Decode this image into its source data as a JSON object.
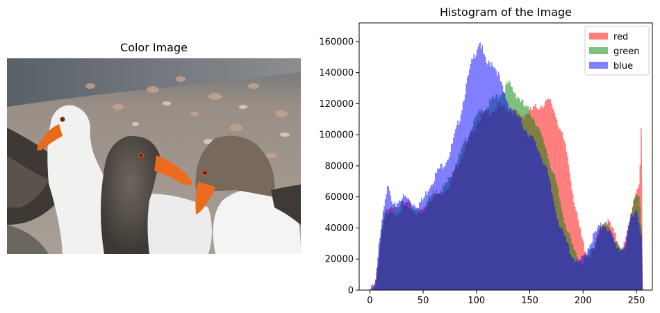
{
  "left_panel": {
    "title": "Color Image"
  },
  "chart_data": {
    "type": "histogram",
    "title": "Histogram of the Image",
    "xlabel": "",
    "ylabel": "",
    "xlim": [
      -10,
      265
    ],
    "ylim": [
      0,
      172000
    ],
    "xticks": [
      0,
      50,
      100,
      150,
      200,
      250
    ],
    "yticks": [
      0,
      20000,
      40000,
      60000,
      80000,
      100000,
      120000,
      140000,
      160000
    ],
    "grid": false,
    "legend_position": "top-right",
    "series": [
      {
        "name": "red",
        "color": "#ff0000",
        "alpha": 0.5,
        "points": [
          [
            0,
            0
          ],
          [
            3,
            1000
          ],
          [
            5,
            3000
          ],
          [
            7,
            12000
          ],
          [
            9,
            25000
          ],
          [
            11,
            38000
          ],
          [
            13,
            45000
          ],
          [
            15,
            48000
          ],
          [
            20,
            52000
          ],
          [
            25,
            50000
          ],
          [
            30,
            54000
          ],
          [
            35,
            56000
          ],
          [
            40,
            52000
          ],
          [
            45,
            50000
          ],
          [
            50,
            52000
          ],
          [
            55,
            57000
          ],
          [
            60,
            62000
          ],
          [
            65,
            62000
          ],
          [
            70,
            65000
          ],
          [
            75,
            70000
          ],
          [
            80,
            78000
          ],
          [
            85,
            85000
          ],
          [
            90,
            93000
          ],
          [
            95,
            100000
          ],
          [
            100,
            108000
          ],
          [
            105,
            113000
          ],
          [
            110,
            114000
          ],
          [
            115,
            116000
          ],
          [
            120,
            118000
          ],
          [
            125,
            118000
          ],
          [
            130,
            117000
          ],
          [
            135,
            114000
          ],
          [
            140,
            112000
          ],
          [
            145,
            113000
          ],
          [
            150,
            115000
          ],
          [
            155,
            117000
          ],
          [
            160,
            119000
          ],
          [
            165,
            121000
          ],
          [
            170,
            121000
          ],
          [
            175,
            112000
          ],
          [
            180,
            100000
          ],
          [
            185,
            88000
          ],
          [
            190,
            65000
          ],
          [
            195,
            45000
          ],
          [
            200,
            30000
          ],
          [
            205,
            22000
          ],
          [
            210,
            25000
          ],
          [
            215,
            38000
          ],
          [
            220,
            45000
          ],
          [
            225,
            43000
          ],
          [
            230,
            35000
          ],
          [
            235,
            28000
          ],
          [
            240,
            30000
          ],
          [
            245,
            50000
          ],
          [
            250,
            65000
          ],
          [
            253,
            70000
          ],
          [
            255,
            112000
          ]
        ]
      },
      {
        "name": "green",
        "color": "#008000",
        "alpha": 0.5,
        "points": [
          [
            0,
            0
          ],
          [
            3,
            1000
          ],
          [
            5,
            3000
          ],
          [
            7,
            12000
          ],
          [
            9,
            25000
          ],
          [
            11,
            38000
          ],
          [
            13,
            46000
          ],
          [
            15,
            50000
          ],
          [
            20,
            53000
          ],
          [
            25,
            51000
          ],
          [
            30,
            55000
          ],
          [
            35,
            56000
          ],
          [
            40,
            52000
          ],
          [
            45,
            51000
          ],
          [
            50,
            52000
          ],
          [
            55,
            58000
          ],
          [
            60,
            63000
          ],
          [
            65,
            64000
          ],
          [
            70,
            67000
          ],
          [
            75,
            72000
          ],
          [
            80,
            80000
          ],
          [
            85,
            88000
          ],
          [
            90,
            96000
          ],
          [
            95,
            104000
          ],
          [
            100,
            111000
          ],
          [
            105,
            116000
          ],
          [
            110,
            118000
          ],
          [
            115,
            122000
          ],
          [
            120,
            125000
          ],
          [
            125,
            128000
          ],
          [
            130,
            133000
          ],
          [
            135,
            128000
          ],
          [
            140,
            124000
          ],
          [
            145,
            118000
          ],
          [
            150,
            115000
          ],
          [
            155,
            110000
          ],
          [
            160,
            100000
          ],
          [
            165,
            92000
          ],
          [
            170,
            80000
          ],
          [
            175,
            68000
          ],
          [
            180,
            52000
          ],
          [
            185,
            40000
          ],
          [
            190,
            28000
          ],
          [
            195,
            20000
          ],
          [
            200,
            18000
          ],
          [
            205,
            22000
          ],
          [
            210,
            28000
          ],
          [
            215,
            38000
          ],
          [
            220,
            42000
          ],
          [
            225,
            40000
          ],
          [
            230,
            32000
          ],
          [
            235,
            25000
          ],
          [
            240,
            28000
          ],
          [
            245,
            50000
          ],
          [
            250,
            60000
          ],
          [
            253,
            60000
          ],
          [
            255,
            40000
          ]
        ]
      },
      {
        "name": "blue",
        "color": "#0000ff",
        "alpha": 0.5,
        "points": [
          [
            0,
            0
          ],
          [
            3,
            1000
          ],
          [
            5,
            3000
          ],
          [
            7,
            15000
          ],
          [
            9,
            32000
          ],
          [
            11,
            45000
          ],
          [
            13,
            55000
          ],
          [
            15,
            63000
          ],
          [
            18,
            65000
          ],
          [
            20,
            58000
          ],
          [
            22,
            52000
          ],
          [
            25,
            56000
          ],
          [
            30,
            60000
          ],
          [
            35,
            59000
          ],
          [
            40,
            56000
          ],
          [
            45,
            55000
          ],
          [
            50,
            58000
          ],
          [
            55,
            66000
          ],
          [
            60,
            72000
          ],
          [
            65,
            78000
          ],
          [
            70,
            82000
          ],
          [
            75,
            88000
          ],
          [
            80,
            100000
          ],
          [
            85,
            113000
          ],
          [
            90,
            130000
          ],
          [
            95,
            145000
          ],
          [
            100,
            155000
          ],
          [
            103,
            161000
          ],
          [
            105,
            156000
          ],
          [
            108,
            148000
          ],
          [
            110,
            145000
          ],
          [
            115,
            147000
          ],
          [
            120,
            140000
          ],
          [
            125,
            128000
          ],
          [
            130,
            120000
          ],
          [
            135,
            115000
          ],
          [
            140,
            110000
          ],
          [
            145,
            105000
          ],
          [
            150,
            100000
          ],
          [
            155,
            94000
          ],
          [
            160,
            88000
          ],
          [
            165,
            80000
          ],
          [
            170,
            65000
          ],
          [
            175,
            50000
          ],
          [
            180,
            38000
          ],
          [
            185,
            30000
          ],
          [
            190,
            22000
          ],
          [
            195,
            18000
          ],
          [
            200,
            20000
          ],
          [
            205,
            28000
          ],
          [
            210,
            35000
          ],
          [
            215,
            40000
          ],
          [
            220,
            43000
          ],
          [
            225,
            38000
          ],
          [
            230,
            30000
          ],
          [
            235,
            26000
          ],
          [
            240,
            30000
          ],
          [
            245,
            48000
          ],
          [
            250,
            52000
          ],
          [
            253,
            45000
          ],
          [
            255,
            30000
          ]
        ]
      }
    ]
  }
}
